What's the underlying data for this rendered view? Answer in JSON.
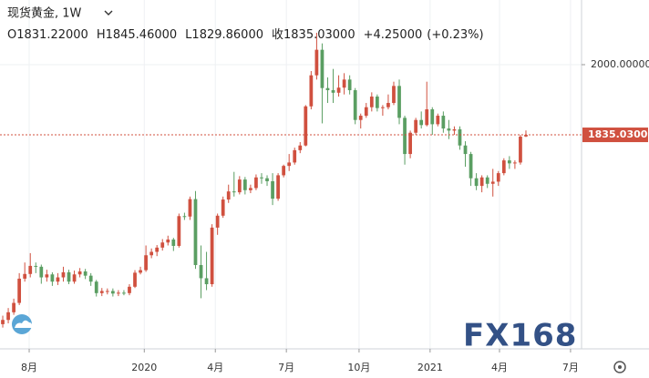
{
  "chart_data": {
    "type": "candlestick",
    "title": "现货黄金, 1W",
    "ohlc_header": [
      {
        "key": "O",
        "value": "1831.22000"
      },
      {
        "key": "H",
        "value": "1845.46000"
      },
      {
        "key": "L",
        "value": "1829.86000"
      },
      {
        "key": "收",
        "value": "1835.03000"
      }
    ],
    "change": "+4.25000",
    "change_pct": "(+0.23%)",
    "up_color": "#d0503f",
    "down_color": "#5a9e62",
    "series": {
      "open": [
        1390,
        1400,
        1418,
        1440,
        1497,
        1508,
        1527,
        1525,
        1500,
        1507,
        1490,
        1500,
        1512,
        1490,
        1507,
        1514,
        1504,
        1490,
        1463,
        1468,
        1468,
        1462,
        1464,
        1463,
        1478,
        1511,
        1517,
        1552,
        1560,
        1570,
        1582,
        1589,
        1574,
        1644,
        1643,
        1684,
        1529,
        1498,
        1484,
        1617,
        1645,
        1683,
        1702,
        1700,
        1730,
        1705,
        1710,
        1735,
        1733,
        1726,
        1685,
        1740,
        1762,
        1770,
        1799,
        1810,
        1902,
        1975,
        2035,
        1945,
        1940,
        1934,
        1946,
        1965,
        1940,
        1870,
        1880,
        1900,
        1925,
        1898,
        1900,
        1910,
        1950,
        1875,
        1790,
        1840,
        1870,
        1858,
        1895,
        1860,
        1880,
        1850,
        1845,
        1848,
        1810,
        1790,
        1733,
        1715,
        1735,
        1720,
        1725,
        1745,
        1775,
        1768,
        1770,
        1831.22
      ],
      "high": [
        1410,
        1428,
        1450,
        1510,
        1535,
        1557,
        1535,
        1530,
        1518,
        1512,
        1510,
        1525,
        1518,
        1516,
        1522,
        1520,
        1510,
        1494,
        1475,
        1474,
        1474,
        1470,
        1470,
        1484,
        1517,
        1525,
        1575,
        1568,
        1576,
        1590,
        1598,
        1593,
        1650,
        1652,
        1690,
        1703,
        1575,
        1560,
        1625,
        1650,
        1690,
        1718,
        1748,
        1738,
        1736,
        1718,
        1742,
        1745,
        1740,
        1745,
        1745,
        1765,
        1790,
        1805,
        1818,
        1905,
        1985,
        2075,
        2050,
        1970,
        1990,
        1975,
        1980,
        1975,
        1945,
        1885,
        1910,
        1935,
        1930,
        1905,
        1930,
        1960,
        1965,
        1880,
        1845,
        1875,
        1890,
        1960,
        1900,
        1885,
        1890,
        1870,
        1855,
        1855,
        1820,
        1795,
        1745,
        1740,
        1740,
        1755,
        1750,
        1780,
        1785,
        1775,
        1835,
        1845.46
      ],
      "low": [
        1382,
        1392,
        1412,
        1435,
        1490,
        1500,
        1510,
        1485,
        1490,
        1480,
        1482,
        1490,
        1484,
        1485,
        1500,
        1496,
        1480,
        1455,
        1456,
        1460,
        1455,
        1456,
        1458,
        1458,
        1475,
        1507,
        1513,
        1545,
        1550,
        1563,
        1575,
        1562,
        1570,
        1635,
        1635,
        1520,
        1451,
        1470,
        1478,
        1600,
        1640,
        1675,
        1690,
        1695,
        1695,
        1698,
        1705,
        1720,
        1715,
        1670,
        1680,
        1735,
        1750,
        1765,
        1792,
        1808,
        1895,
        1965,
        1862,
        1910,
        1910,
        1925,
        1930,
        1930,
        1860,
        1850,
        1875,
        1890,
        1890,
        1880,
        1895,
        1905,
        1860,
        1765,
        1780,
        1835,
        1850,
        1855,
        1835,
        1855,
        1840,
        1825,
        1835,
        1800,
        1760,
        1715,
        1705,
        1700,
        1710,
        1690,
        1715,
        1740,
        1755,
        1755,
        1765,
        1829.86
      ],
      "close": [
        1400,
        1418,
        1440,
        1497,
        1508,
        1527,
        1525,
        1500,
        1507,
        1490,
        1500,
        1512,
        1490,
        1507,
        1514,
        1504,
        1490,
        1463,
        1468,
        1468,
        1462,
        1464,
        1463,
        1478,
        1511,
        1517,
        1552,
        1560,
        1570,
        1582,
        1589,
        1574,
        1644,
        1643,
        1684,
        1529,
        1498,
        1484,
        1617,
        1645,
        1683,
        1702,
        1700,
        1730,
        1705,
        1710,
        1735,
        1733,
        1726,
        1685,
        1740,
        1762,
        1770,
        1799,
        1810,
        1902,
        1975,
        2035,
        1945,
        1940,
        1934,
        1946,
        1965,
        1940,
        1870,
        1880,
        1900,
        1925,
        1898,
        1900,
        1910,
        1950,
        1875,
        1790,
        1840,
        1870,
        1858,
        1895,
        1860,
        1880,
        1850,
        1845,
        1848,
        1810,
        1790,
        1733,
        1715,
        1735,
        1720,
        1725,
        1745,
        1775,
        1768,
        1770,
        1830.78,
        1835.03
      ]
    },
    "xlim": [
      -0.5,
      105.1
    ],
    "xticks": [
      {
        "value": 4.8,
        "label": "8月"
      },
      {
        "value": 25.7,
        "label": "2020"
      },
      {
        "value": 38.6,
        "label": "4月"
      },
      {
        "value": 51.5,
        "label": "7月"
      },
      {
        "value": 64.7,
        "label": "10月"
      },
      {
        "value": 77.6,
        "label": "2021"
      },
      {
        "value": 90.2,
        "label": "4月"
      },
      {
        "value": 103.1,
        "label": "7月"
      }
    ],
    "ylim": [
      1332,
      2152
    ],
    "yticks": [
      {
        "value": 2000,
        "label": "2000.00000"
      }
    ],
    "last_price": {
      "value": 1835.03,
      "label": "1835.03000"
    },
    "grid": true,
    "watermark": "FX168"
  }
}
